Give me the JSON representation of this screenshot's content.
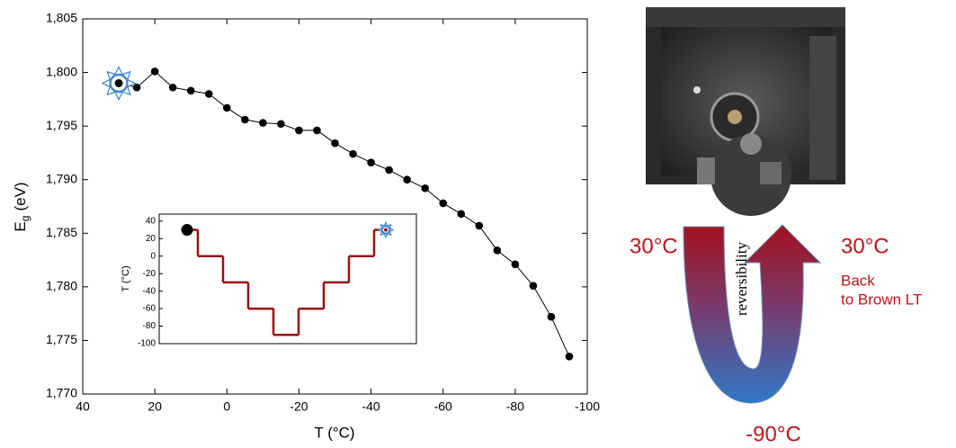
{
  "chart_data": [
    {
      "type": "line",
      "xlabel": "T (°C)",
      "ylabel": {
        "main": "E",
        "sub": "g",
        "unit": "(eV)"
      },
      "x": [
        30,
        25,
        20,
        15,
        10,
        5,
        0,
        -5,
        -10,
        -15,
        -20,
        -25,
        -30,
        -35,
        -40,
        -45,
        -50,
        -55,
        -60,
        -65,
        -70,
        -75,
        -80,
        -85,
        -90,
        -95
      ],
      "values": [
        1.799,
        1.7986,
        1.8001,
        1.7986,
        1.7983,
        1.798,
        1.7967,
        1.7956,
        1.7953,
        1.7952,
        1.7946,
        1.7946,
        1.7934,
        1.7924,
        1.7916,
        1.7909,
        1.79,
        1.7892,
        1.7878,
        1.7868,
        1.7857,
        1.7834,
        1.7821,
        1.7801,
        1.7772,
        1.7735
      ],
      "color": "#000000",
      "xlim": [
        40,
        -100
      ],
      "xticks": [
        40,
        20,
        0,
        -20,
        -40,
        -60,
        -80,
        -100
      ],
      "ylim": [
        1.77,
        1.805
      ],
      "yticks": [
        {
          "value": 1.77,
          "label": "1,770"
        },
        {
          "value": 1.775,
          "label": "1,775"
        },
        {
          "value": 1.78,
          "label": "1,780"
        },
        {
          "value": 1.785,
          "label": "1,785"
        },
        {
          "value": 1.79,
          "label": "1,790"
        },
        {
          "value": 1.795,
          "label": "1,795"
        },
        {
          "value": 1.8,
          "label": "1,800"
        },
        {
          "value": 1.805,
          "label": "1,805"
        }
      ]
    },
    {
      "type": "step",
      "ylabel": "T (°C)",
      "values": [
        30,
        0,
        -30,
        -60,
        -90,
        -60,
        -30,
        0,
        30
      ],
      "color": "#9b1010",
      "ylim": [
        -100,
        48
      ],
      "yticks": [
        40,
        20,
        0,
        -20,
        -40,
        -60,
        -80,
        -100
      ]
    }
  ],
  "illustration": {
    "start_label": "30°C",
    "turn_label": "reversibility",
    "low_label": "-90°C",
    "end_label": "30°C",
    "end_note": [
      "Back",
      "to Brown LT"
    ]
  }
}
